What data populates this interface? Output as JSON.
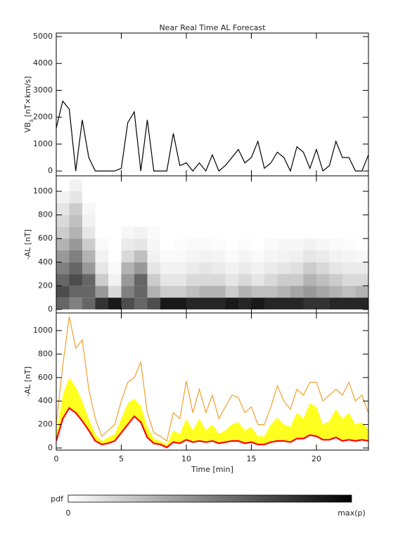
{
  "chart_data": [
    {
      "type": "line",
      "title": "Near Real Time AL Forecast",
      "ylabel": "VB",
      "ylabel_sub": "s",
      "ylabel_unit": "[nT×km/s]",
      "x": [
        0,
        0.5,
        1,
        1.5,
        2,
        2.5,
        3,
        3.5,
        4,
        4.5,
        5,
        5.5,
        6,
        6.5,
        7,
        7.5,
        8,
        8.5,
        9,
        9.5,
        10,
        10.5,
        11,
        11.5,
        12,
        12.5,
        13,
        13.5,
        14,
        14.5,
        15,
        15.5,
        16,
        16.5,
        17,
        17.5,
        18,
        18.5,
        19,
        19.5,
        20,
        20.5,
        21,
        21.5,
        22,
        22.5,
        23,
        23.5,
        24
      ],
      "series": [
        {
          "color": "#000000",
          "values": [
            1600,
            2600,
            2300,
            0,
            1900,
            500,
            0,
            0,
            0,
            0,
            100,
            1800,
            2200,
            0,
            1900,
            0,
            0,
            0,
            1400,
            200,
            300,
            0,
            300,
            0,
            600,
            0,
            200,
            500,
            800,
            300,
            500,
            1100,
            100,
            300,
            700,
            500,
            0,
            900,
            700,
            100,
            800,
            0,
            200,
            1100,
            500,
            500,
            0,
            0,
            600
          ]
        }
      ],
      "xlim": [
        0,
        24
      ],
      "ylim": [
        -180,
        5130
      ],
      "yticks": [
        0,
        1000,
        2000,
        3000,
        4000,
        5000
      ]
    },
    {
      "type": "heatmap",
      "ylabel": "-AL [nT]",
      "colormap": "gray",
      "x_bins": [
        0,
        1,
        2,
        3,
        4,
        5,
        6,
        7,
        8,
        9,
        10,
        11,
        12,
        13,
        14,
        15,
        16,
        17,
        18,
        19,
        20,
        21,
        22,
        23,
        24
      ],
      "y_bins": [
        0,
        100,
        200,
        300,
        400,
        500,
        600,
        700,
        800,
        900,
        1000,
        1100
      ],
      "z": [
        [
          0.6,
          0.5,
          0.6,
          0.8,
          0.9,
          0.7,
          0.6,
          0.7,
          0.9,
          0.9,
          0.85,
          0.85,
          0.85,
          0.9,
          0.85,
          0.9,
          0.85,
          0.85,
          0.85,
          0.8,
          0.8,
          0.85,
          0.85,
          0.85
        ],
        [
          0.7,
          0.6,
          0.6,
          0.4,
          0.15,
          0.5,
          0.6,
          0.3,
          0.2,
          0.2,
          0.25,
          0.3,
          0.3,
          0.2,
          0.3,
          0.25,
          0.25,
          0.3,
          0.35,
          0.4,
          0.35,
          0.3,
          0.25,
          0.3
        ],
        [
          0.6,
          0.7,
          0.6,
          0.2,
          0.05,
          0.4,
          0.6,
          0.2,
          0.1,
          0.1,
          0.15,
          0.15,
          0.15,
          0.1,
          0.15,
          0.1,
          0.15,
          0.2,
          0.2,
          0.3,
          0.25,
          0.2,
          0.15,
          0.15
        ],
        [
          0.5,
          0.6,
          0.4,
          0.1,
          0.02,
          0.3,
          0.4,
          0.1,
          0.05,
          0.05,
          0.08,
          0.1,
          0.08,
          0.05,
          0.08,
          0.05,
          0.08,
          0.1,
          0.12,
          0.2,
          0.15,
          0.1,
          0.08,
          0.08
        ],
        [
          0.4,
          0.5,
          0.3,
          0.05,
          0,
          0.15,
          0.25,
          0.05,
          0.02,
          0.02,
          0.04,
          0.05,
          0.04,
          0.02,
          0.04,
          0.02,
          0.04,
          0.05,
          0.06,
          0.1,
          0.08,
          0.05,
          0.04,
          0.03
        ],
        [
          0.3,
          0.4,
          0.2,
          0.02,
          0,
          0.08,
          0.1,
          0.03,
          0,
          0.01,
          0.02,
          0.02,
          0.01,
          0,
          0.01,
          0,
          0.02,
          0.03,
          0.03,
          0.05,
          0.03,
          0.02,
          0.01,
          0
        ],
        [
          0.2,
          0.3,
          0.1,
          0,
          0,
          0.03,
          0.05,
          0.02,
          0,
          0,
          0,
          0,
          0,
          0,
          0,
          0,
          0,
          0,
          0,
          0,
          0,
          0,
          0,
          0
        ],
        [
          0.15,
          0.25,
          0.05,
          0,
          0,
          0,
          0,
          0,
          0,
          0,
          0,
          0,
          0,
          0,
          0,
          0,
          0,
          0,
          0,
          0,
          0,
          0,
          0,
          0
        ],
        [
          0.1,
          0.2,
          0.03,
          0,
          0,
          0,
          0,
          0,
          0,
          0,
          0,
          0,
          0,
          0,
          0,
          0,
          0,
          0,
          0,
          0,
          0,
          0,
          0,
          0
        ],
        [
          0.05,
          0.1,
          0,
          0,
          0,
          0,
          0,
          0,
          0,
          0,
          0,
          0,
          0,
          0,
          0,
          0,
          0,
          0,
          0,
          0,
          0,
          0,
          0,
          0
        ],
        [
          0,
          0.05,
          0,
          0,
          0,
          0,
          0,
          0,
          0,
          0,
          0,
          0,
          0,
          0,
          0,
          0,
          0,
          0,
          0,
          0,
          0,
          0,
          0,
          0
        ]
      ],
      "xlim": [
        0,
        24
      ],
      "ylim": [
        -30,
        1131
      ],
      "yticks": [
        0,
        200,
        400,
        600,
        800,
        1000
      ]
    },
    {
      "type": "line",
      "ylabel": "-AL [nT]",
      "xlabel": "Time [min]",
      "x": [
        0,
        0.5,
        1,
        1.5,
        2,
        2.5,
        3,
        3.5,
        4,
        4.5,
        5,
        5.5,
        6,
        6.5,
        7,
        7.5,
        8,
        8.5,
        9,
        9.5,
        10,
        10.5,
        11,
        11.5,
        12,
        12.5,
        13,
        13.5,
        14,
        14.5,
        15,
        15.5,
        16,
        16.5,
        17,
        17.5,
        18,
        18.5,
        19,
        19.5,
        20,
        20.5,
        21,
        21.5,
        22,
        22.5,
        23,
        23.5,
        24
      ],
      "series": [
        {
          "color": "#ff0000",
          "values": [
            60,
            250,
            340,
            300,
            230,
            150,
            60,
            30,
            40,
            60,
            130,
            200,
            270,
            220,
            90,
            40,
            30,
            5,
            50,
            40,
            70,
            50,
            60,
            50,
            60,
            40,
            50,
            60,
            60,
            40,
            50,
            30,
            30,
            50,
            60,
            60,
            50,
            80,
            80,
            110,
            100,
            70,
            70,
            90,
            60,
            70,
            60,
            70,
            60
          ]
        },
        {
          "color": "#ffff20",
          "fill_to": 0,
          "values": [
            120,
            450,
            600,
            520,
            400,
            250,
            120,
            60,
            90,
            120,
            250,
            380,
            420,
            360,
            180,
            80,
            60,
            30,
            150,
            120,
            250,
            150,
            250,
            150,
            200,
            120,
            150,
            200,
            220,
            150,
            180,
            100,
            100,
            200,
            260,
            200,
            180,
            300,
            250,
            380,
            350,
            200,
            230,
            330,
            250,
            300,
            200,
            220,
            160
          ]
        },
        {
          "color": "#f0a030",
          "values": [
            200,
            700,
            1120,
            850,
            920,
            500,
            250,
            100,
            150,
            200,
            400,
            560,
            600,
            730,
            300,
            130,
            100,
            60,
            300,
            250,
            570,
            300,
            500,
            300,
            450,
            250,
            350,
            450,
            430,
            300,
            350,
            200,
            200,
            350,
            530,
            400,
            330,
            500,
            450,
            560,
            560,
            400,
            450,
            500,
            450,
            560,
            400,
            450,
            300
          ]
        }
      ],
      "xlim": [
        0,
        24
      ],
      "ylim": [
        -18,
        1150
      ],
      "yticks": [
        0,
        200,
        400,
        600,
        800,
        1000
      ],
      "xticks": [
        0,
        5,
        10,
        15,
        20
      ]
    }
  ],
  "colorbar": {
    "label": "pdf",
    "min_label": 0,
    "max_label": "max(p)"
  }
}
